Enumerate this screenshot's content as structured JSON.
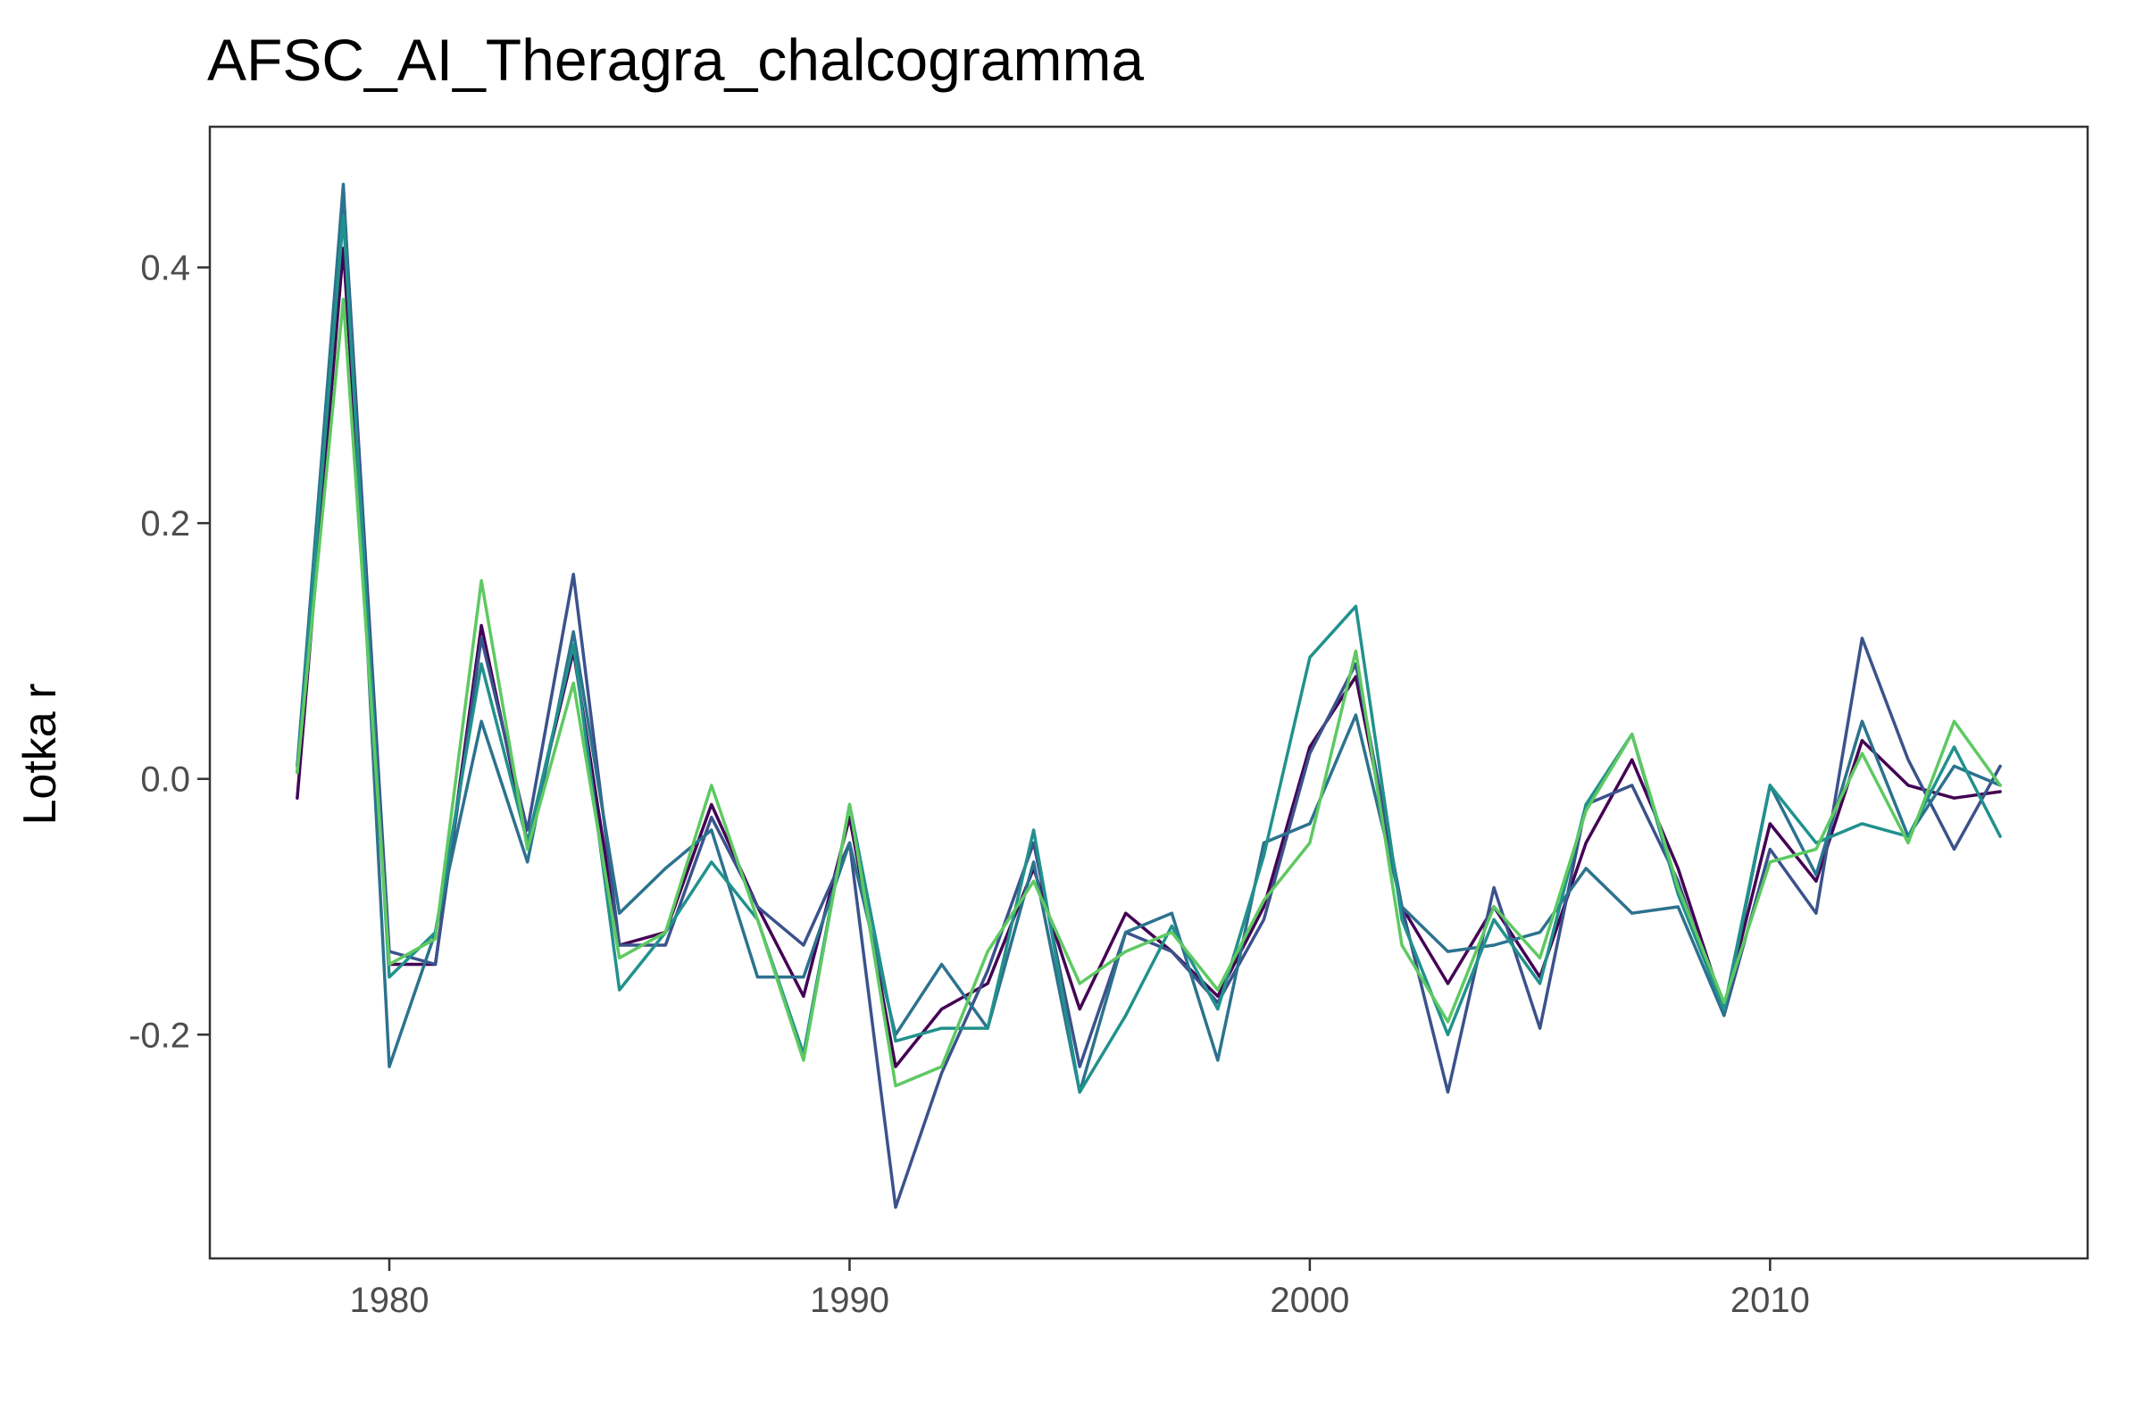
{
  "chart_data": {
    "type": "line",
    "title": "AFSC_AI_Theragra_chalcogramma",
    "xlabel": "",
    "ylabel": "Lotka r",
    "xlim": [
      1976.1,
      2016.9
    ],
    "ylim": [
      -0.375,
      0.51
    ],
    "x_ticks": [
      {
        "value": 1980,
        "label": "1980"
      },
      {
        "value": 1990,
        "label": "1990"
      },
      {
        "value": 2000,
        "label": "2000"
      },
      {
        "value": 2010,
        "label": "2010"
      }
    ],
    "y_ticks": [
      {
        "value": 0.4,
        "label": "0.4"
      },
      {
        "value": 0.2,
        "label": "0.2"
      },
      {
        "value": 0.0,
        "label": "0.0"
      },
      {
        "value": -0.2,
        "label": "-0.2"
      }
    ],
    "grid": false,
    "legend": "none",
    "x": [
      1978,
      1979,
      1980,
      1981,
      1982,
      1983,
      1984,
      1985,
      1986,
      1987,
      1988,
      1989,
      1990,
      1991,
      1992,
      1993,
      1994,
      1995,
      1996,
      1997,
      1998,
      1999,
      2000,
      2001,
      2002,
      2003,
      2004,
      2005,
      2006,
      2007,
      2008,
      2009,
      2010,
      2011,
      2012,
      2013,
      2014,
      2015
    ],
    "series": [
      {
        "color": "#440154",
        "values": [
          -0.015,
          0.415,
          -0.145,
          -0.145,
          0.12,
          -0.05,
          0.1,
          -0.13,
          -0.12,
          -0.02,
          -0.1,
          -0.17,
          -0.03,
          -0.225,
          -0.18,
          -0.16,
          -0.07,
          -0.18,
          -0.105,
          -0.135,
          -0.17,
          -0.1,
          0.025,
          0.08,
          -0.1,
          -0.16,
          -0.1,
          -0.155,
          -0.05,
          0.015,
          -0.07,
          -0.18,
          -0.035,
          -0.08,
          0.03,
          -0.005,
          -0.015,
          -0.01
        ]
      },
      {
        "color": "#3b528b",
        "values": [
          0.005,
          0.46,
          -0.135,
          -0.145,
          0.11,
          -0.04,
          0.16,
          -0.13,
          -0.13,
          -0.03,
          -0.1,
          -0.13,
          -0.05,
          -0.335,
          -0.23,
          -0.15,
          -0.05,
          -0.225,
          -0.12,
          -0.135,
          -0.175,
          -0.11,
          0.02,
          0.09,
          -0.1,
          -0.245,
          -0.085,
          -0.195,
          -0.02,
          -0.005,
          -0.08,
          -0.185,
          -0.055,
          -0.105,
          0.11,
          0.015,
          -0.055,
          0.01
        ]
      },
      {
        "color": "#2c728e",
        "values": [
          0.01,
          0.465,
          -0.225,
          -0.12,
          0.045,
          -0.065,
          0.115,
          -0.105,
          -0.07,
          -0.04,
          -0.155,
          -0.155,
          -0.05,
          -0.2,
          -0.145,
          -0.195,
          -0.065,
          -0.245,
          -0.12,
          -0.105,
          -0.22,
          -0.05,
          -0.035,
          0.05,
          -0.1,
          -0.135,
          -0.13,
          -0.12,
          -0.07,
          -0.105,
          -0.1,
          -0.185,
          -0.005,
          -0.075,
          0.045,
          -0.045,
          0.01,
          -0.005
        ]
      },
      {
        "color": "#21918c",
        "values": [
          0.005,
          0.44,
          -0.155,
          -0.12,
          0.09,
          -0.05,
          0.105,
          -0.165,
          -0.12,
          -0.065,
          -0.11,
          -0.215,
          -0.02,
          -0.205,
          -0.195,
          -0.195,
          -0.04,
          -0.245,
          -0.185,
          -0.115,
          -0.18,
          -0.06,
          0.095,
          0.135,
          -0.11,
          -0.2,
          -0.11,
          -0.16,
          -0.02,
          0.035,
          -0.09,
          -0.18,
          -0.005,
          -0.05,
          -0.035,
          -0.045,
          0.025,
          -0.045
        ]
      },
      {
        "color": "#5ec962",
        "values": [
          0.005,
          0.375,
          -0.145,
          -0.125,
          0.155,
          -0.055,
          0.075,
          -0.14,
          -0.12,
          -0.005,
          -0.11,
          -0.22,
          -0.02,
          -0.24,
          -0.225,
          -0.135,
          -0.08,
          -0.16,
          -0.135,
          -0.12,
          -0.165,
          -0.095,
          -0.05,
          0.1,
          -0.13,
          -0.19,
          -0.1,
          -0.14,
          -0.025,
          0.035,
          -0.085,
          -0.175,
          -0.065,
          -0.055,
          0.02,
          -0.05,
          0.045,
          -0.005
        ]
      }
    ]
  }
}
